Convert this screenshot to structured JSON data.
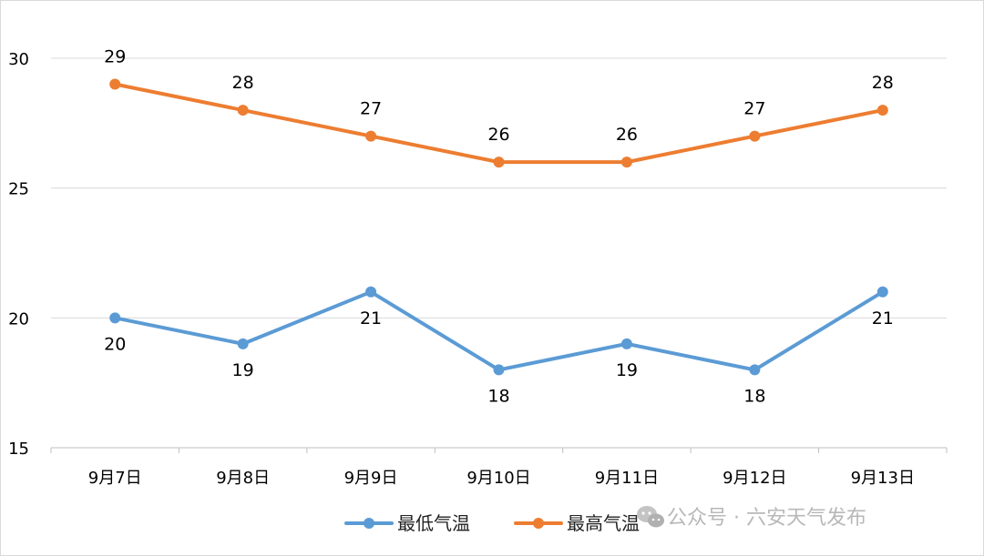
{
  "chart_data": {
    "type": "line",
    "categories": [
      "9月7日",
      "9月8日",
      "9月9日",
      "9月10日",
      "9月11日",
      "9月12日",
      "9月13日"
    ],
    "series": [
      {
        "name": "最低气温",
        "values": [
          20,
          19,
          21,
          18,
          19,
          18,
          21
        ],
        "color": "#5b9bd5",
        "label_position": "below"
      },
      {
        "name": "最高气温",
        "values": [
          29,
          28,
          27,
          26,
          26,
          27,
          28
        ],
        "color": "#ed7d31",
        "label_position": "above"
      }
    ],
    "ylim": [
      15,
      30
    ],
    "yticks": [
      15,
      20,
      25,
      30
    ],
    "grid": true,
    "legend_position": "bottom",
    "title": "",
    "xlabel": "",
    "ylabel": ""
  },
  "watermark": {
    "text": "公众号 · 六安天气发布",
    "icon": "wechat-icon"
  }
}
